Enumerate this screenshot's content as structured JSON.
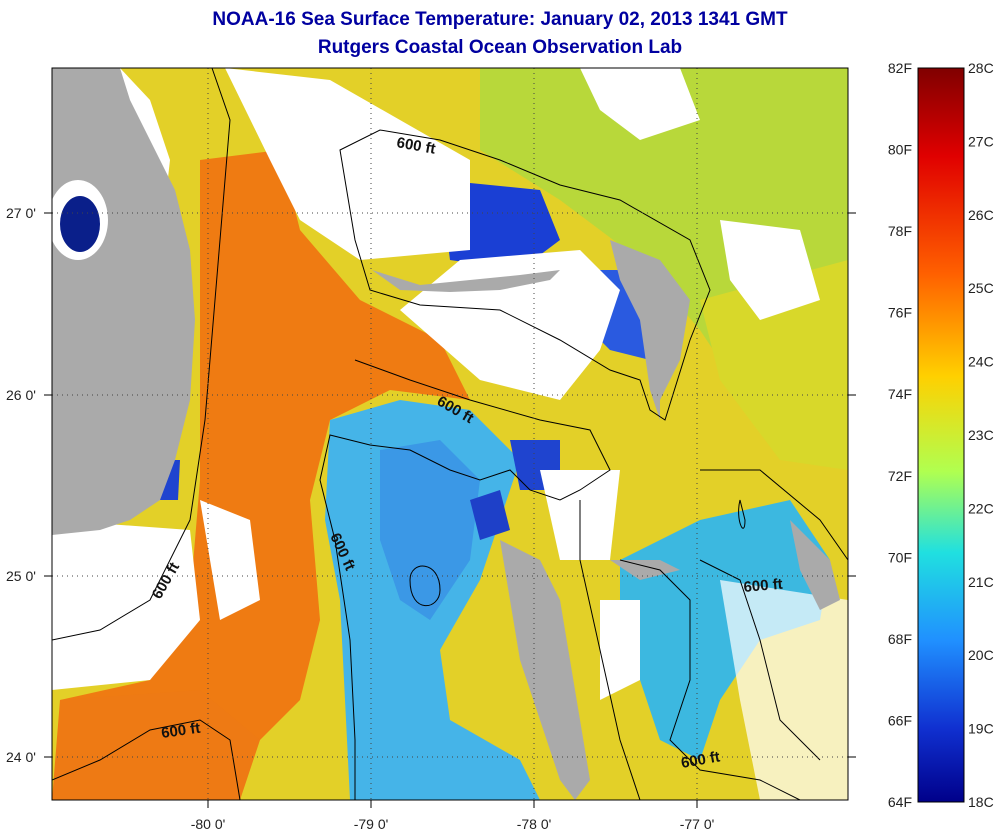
{
  "title": "NOAA-16 Sea Surface Temperature:  January 02, 2013 1341 GMT",
  "subtitle": "Rutgers Coastal Ocean Observation Lab",
  "map": {
    "lat_ticks": [
      "27 0'",
      "26 0'",
      "25 0'",
      "24 0'"
    ],
    "lon_ticks": [
      "-80 0'",
      "-79 0'",
      "-78 0'",
      "-77 0'"
    ],
    "contour_label": "600 ft",
    "colors": {
      "land": "#a9a9a9",
      "cloud": "#ffffff",
      "gulf_stream": "#f07a10",
      "warm_shelf": "#e8d21e",
      "cool_water": "#3aa6e8",
      "cold_water": "#1a3cd0",
      "lake": "#0a1f8a"
    }
  },
  "colorbar": {
    "fahrenheit": [
      "82F",
      "80F",
      "78F",
      "76F",
      "74F",
      "72F",
      "70F",
      "68F",
      "66F",
      "64F"
    ],
    "celsius": [
      "28C",
      "27C",
      "26C",
      "25C",
      "24C",
      "23C",
      "22C",
      "21C",
      "20C",
      "19C",
      "18C"
    ]
  }
}
